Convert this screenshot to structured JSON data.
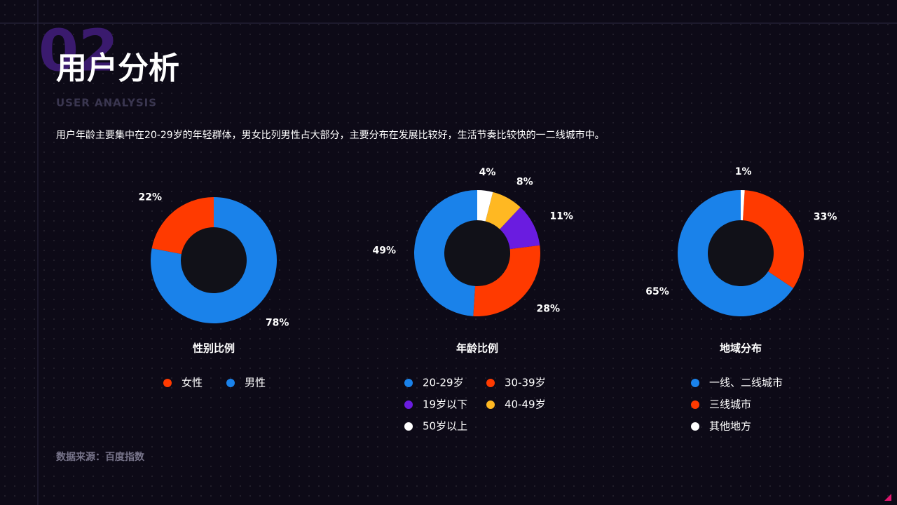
{
  "header": {
    "number": "02",
    "title": "用户分析",
    "subtitle": "USER ANALYSIS"
  },
  "description": "用户年龄主要集中在20-29岁的年轻群体，男女比列男性占大部分，主要分布在发展比较好，生活节奏比较快的一二线城市中。",
  "source": "数据来源：百度指数",
  "chart_data": [
    {
      "type": "pie",
      "title": "性别比例",
      "categories": [
        "女性",
        "男性"
      ],
      "values": [
        22,
        78
      ],
      "value_labels": [
        "22%",
        "78%"
      ],
      "colors": [
        "#ff3a00",
        "#1a82ea"
      ]
    },
    {
      "type": "pie",
      "title": "年龄比例",
      "categories": [
        "20-29岁",
        "30-39岁",
        "19岁以下",
        "40-49岁",
        "50岁以上"
      ],
      "values": [
        49,
        28,
        11,
        8,
        4
      ],
      "value_labels": [
        "49%",
        "28%",
        "11%",
        "8%",
        "4%"
      ],
      "colors": [
        "#1a82ea",
        "#ff3a00",
        "#6a1ce0",
        "#ffb822",
        "#ffffff"
      ]
    },
    {
      "type": "pie",
      "title": "地域分布",
      "categories": [
        "一线、二线城市",
        "三线城市",
        "其他地方"
      ],
      "values": [
        65,
        33,
        1
      ],
      "value_labels": [
        "65%",
        "33%",
        "1%"
      ],
      "colors": [
        "#1a82ea",
        "#ff3a00",
        "#ffffff"
      ]
    }
  ]
}
